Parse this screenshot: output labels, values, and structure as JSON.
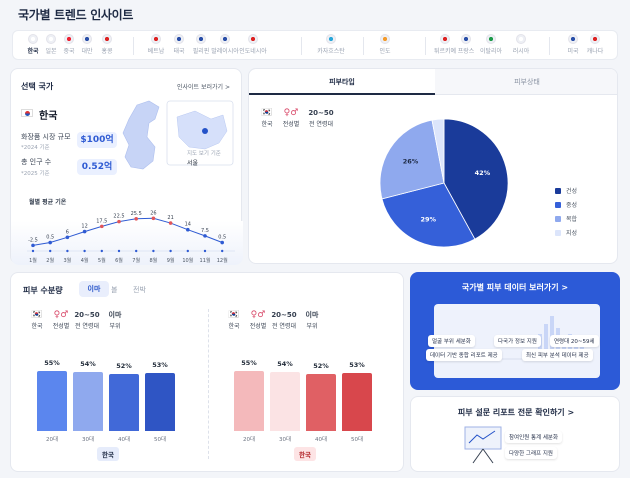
{
  "page_title": "국가별 트렌드 인사이트",
  "countries": [
    "한국",
    "일본",
    "중국",
    "대만",
    "홍콩",
    "베트남",
    "태국",
    "필리핀",
    "말레이시아",
    "인도네시아",
    "카자흐스탄",
    "인도",
    "튀르키예",
    "프랑스",
    "이탈리아",
    "러시아",
    "미국",
    "캐나다"
  ],
  "selected_country": {
    "header": "선택 국가",
    "view_insight_link": "인사이트 보러가기 >",
    "name": "한국",
    "market_label": "화장품 시장 규모",
    "market_value": "$100억",
    "market_note": "*2024 기준",
    "population_label": "총 인구 수",
    "population_value": "0.52억",
    "population_note": "*2025 기준",
    "map_label": "서울",
    "map_sub": "지도 보기 기준",
    "temp_title": "월별 평균 기온",
    "temps": [
      "-2.5",
      "0.5",
      "6",
      "12",
      "17.5",
      "22.5",
      "25.5",
      "26",
      "21",
      "14",
      "7.5",
      "0.5"
    ],
    "months": [
      "1월",
      "2월",
      "3월",
      "4월",
      "5월",
      "6월",
      "7월",
      "8월",
      "9월",
      "10월",
      "11월",
      "12월"
    ]
  },
  "skin_panel": {
    "tabs": [
      "피부타입",
      "피부상태"
    ],
    "filters": {
      "country": "한국",
      "gender": "전성별",
      "age": "20~50",
      "age_note": "전 연령대"
    },
    "legend": [
      "건성",
      "중성",
      "복합",
      "지성"
    ],
    "colors": [
      "#1a3b9a",
      "#3560d9",
      "#8fa9ee",
      "#dce5fb"
    ]
  },
  "chart_data": [
    {
      "type": "pie",
      "categories": [
        "건성",
        "중성",
        "복합",
        "지성"
      ],
      "values": [
        42,
        29,
        26,
        3
      ],
      "labels": [
        "42%",
        "29%",
        "26%",
        ""
      ]
    },
    {
      "type": "bar",
      "title": "피부 수분량",
      "categories": [
        "20대",
        "30대",
        "40대",
        "50대"
      ],
      "values": [
        55,
        54,
        52,
        53
      ],
      "labels": [
        "55%",
        "54%",
        "52%",
        "53%"
      ]
    },
    {
      "type": "bar",
      "categories": [
        "20대",
        "30대",
        "40대",
        "50대"
      ],
      "values": [
        55,
        54,
        52,
        53
      ],
      "labels": [
        "55%",
        "54%",
        "52%",
        "53%"
      ]
    }
  ],
  "moisture": {
    "title": "피부 수분량",
    "tabs": [
      "이마",
      "볼",
      "전박"
    ],
    "filter_values": [
      "한국",
      "전성별",
      "20~50",
      "이마"
    ],
    "filter_captions": [
      "한국",
      "전성별",
      "전 연령대",
      "부위"
    ],
    "country_tag_left": "한국",
    "country_tag_right": "한국"
  },
  "promo_data": {
    "title": "국가별 피부 데이터 보러가기  >",
    "chips": [
      "얼굴 부위 세분화",
      "다국가 정보 지원",
      "연령대 20~59세",
      "데이터 기반 종합 리포트 제공",
      "최신 피부 분석 데이터 제공"
    ]
  },
  "promo_survey": {
    "title": "피부 설문 리포트 전문 확인하기  >",
    "chips": [
      "참여인원 통계 세분화",
      "다양한 그래프 지원"
    ]
  }
}
